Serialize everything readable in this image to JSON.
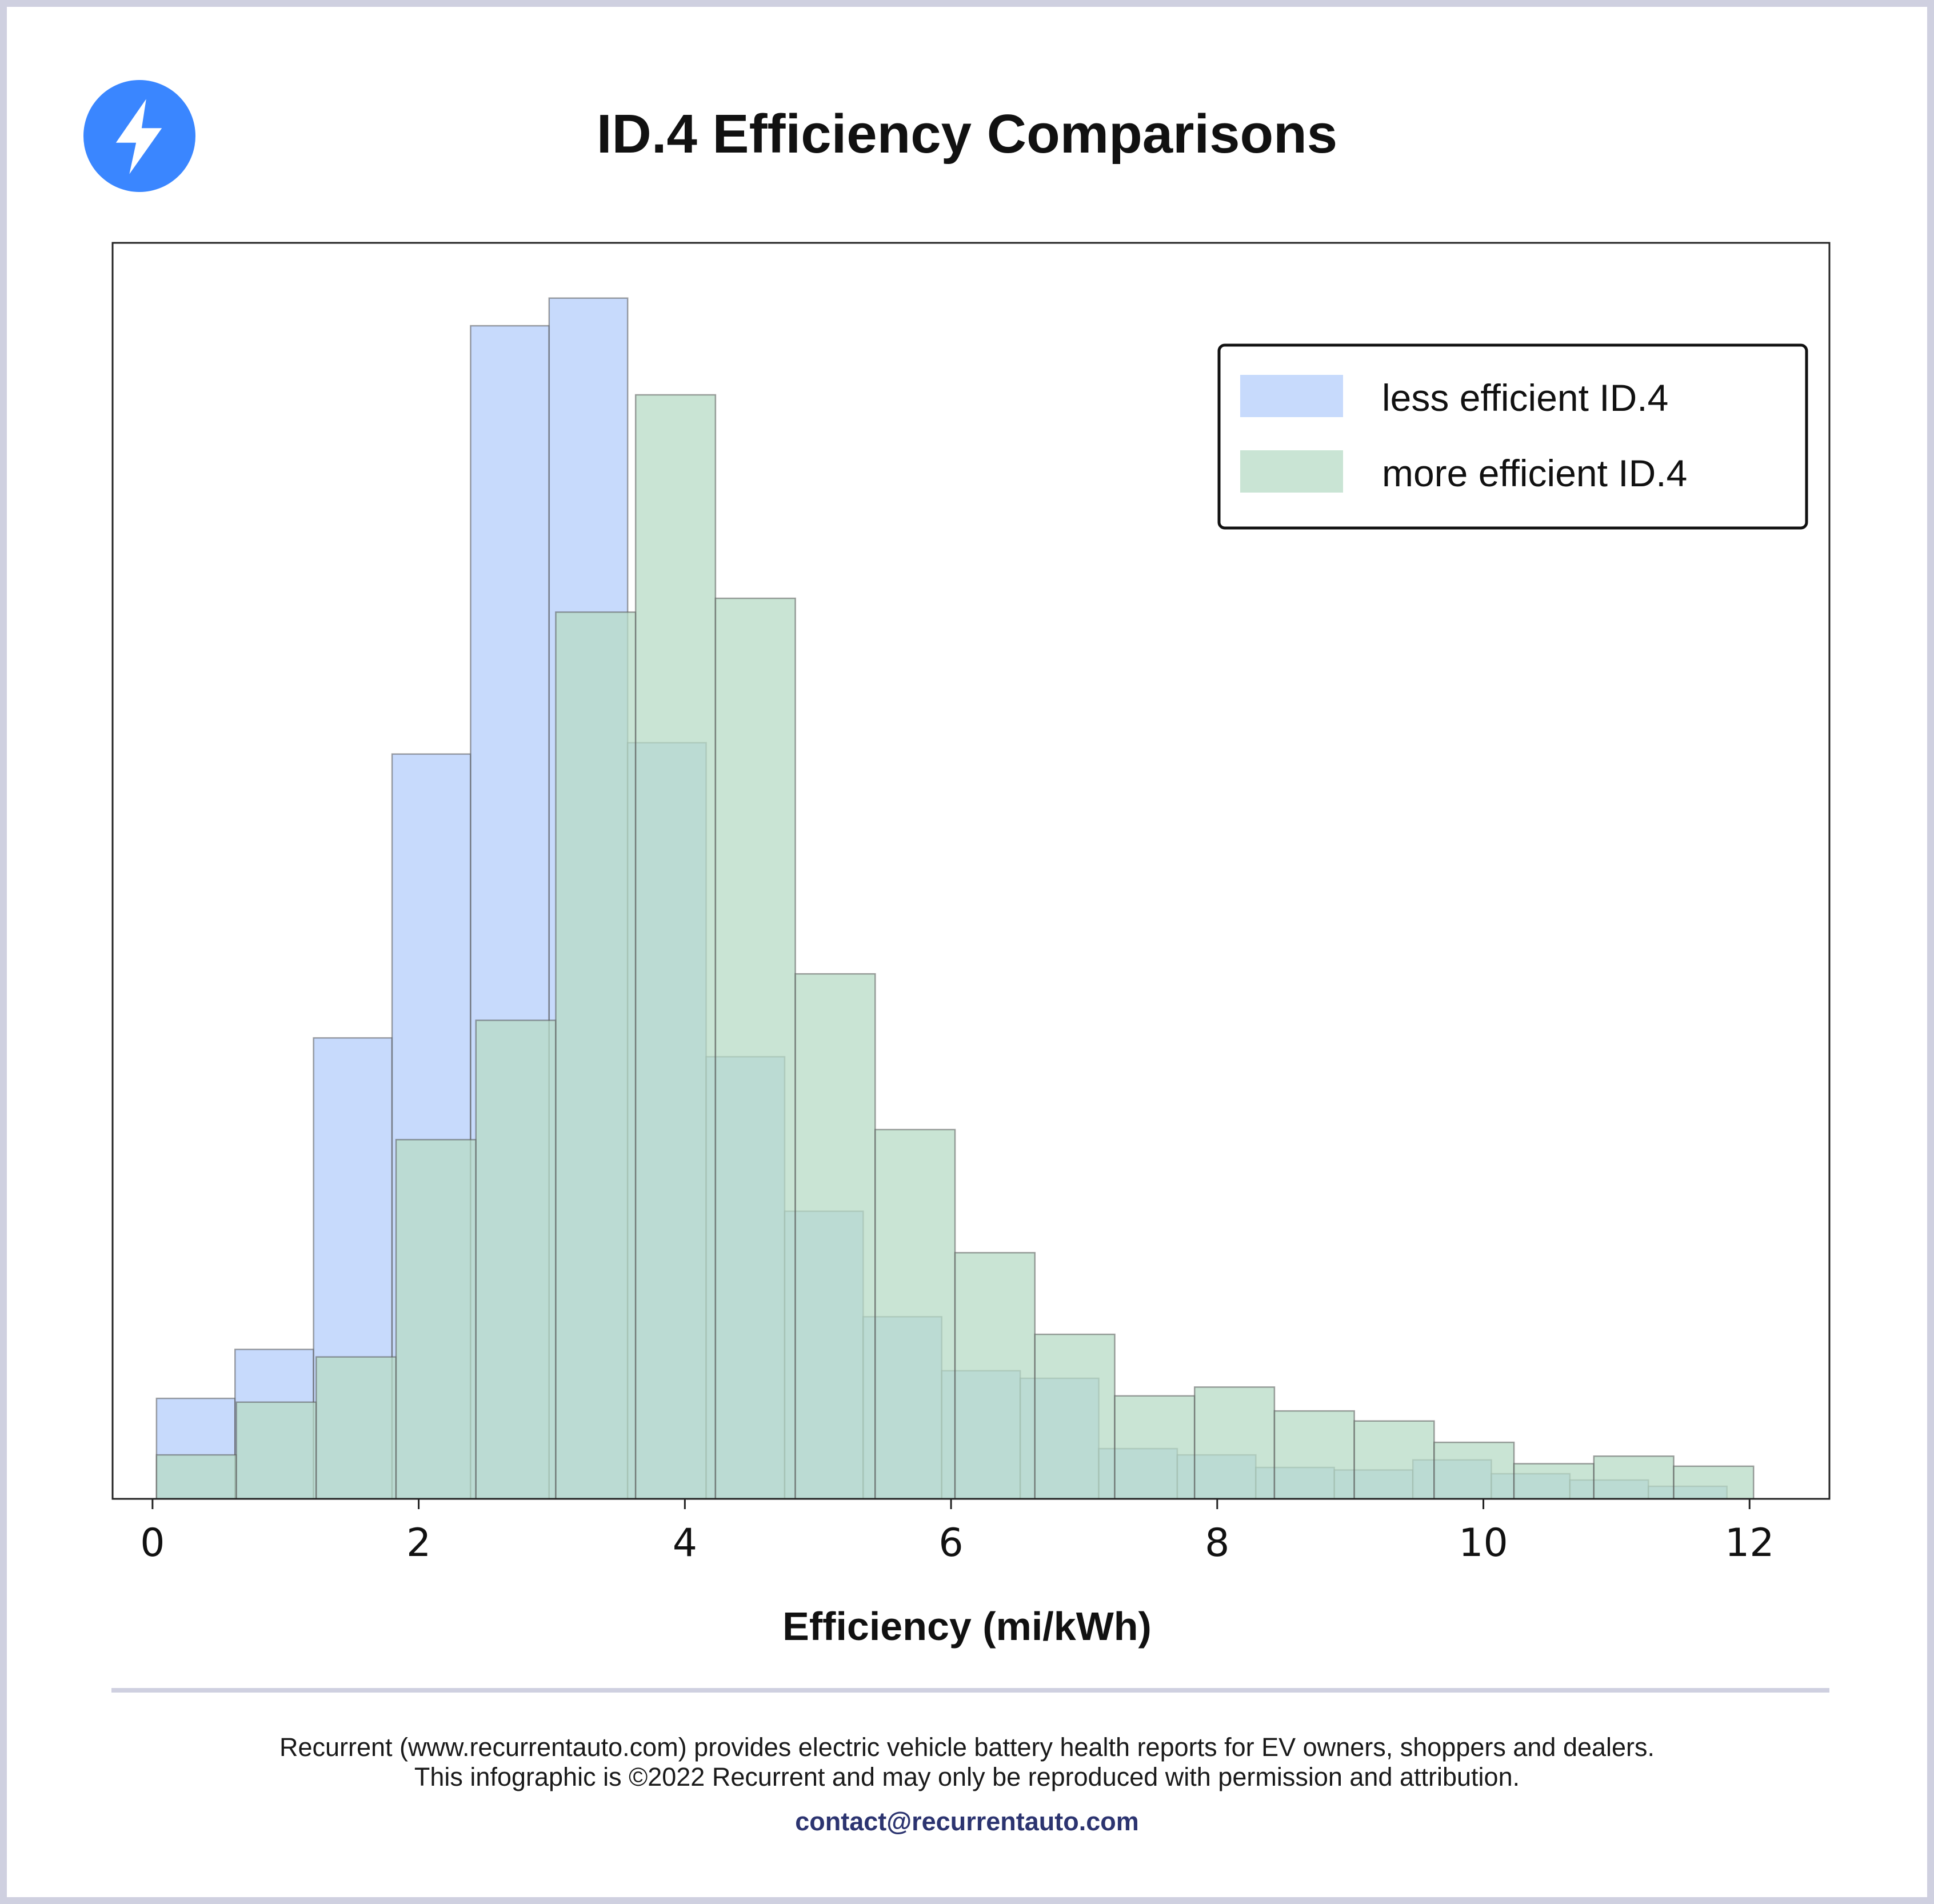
{
  "header": {
    "title": "ID.4 Efficiency Comparisons",
    "logo_icon": "lightning-bolt-icon",
    "logo_color": "#3a86ff"
  },
  "chart_data": {
    "type": "histogram",
    "xlabel": "Efficiency (mi/kWh)",
    "ylabel": "",
    "xlim": [
      -0.3,
      12.6
    ],
    "ylim": [
      0,
      1000
    ],
    "x_ticks": [
      0,
      2,
      4,
      6,
      8,
      10,
      12
    ],
    "y_ticks": [],
    "legend_position": "top-right",
    "series": [
      {
        "name": "less efficient ID.4",
        "color": "#b4cdfb",
        "bin_edges": [
          0.03,
          0.62,
          1.21,
          1.8,
          2.39,
          2.98,
          3.57,
          4.16,
          4.75,
          5.34,
          5.93,
          6.52,
          7.11,
          7.7,
          8.29,
          8.88,
          9.47,
          10.06,
          10.65,
          11.24,
          11.83
        ],
        "counts": [
          80,
          119,
          367,
          593,
          934,
          956,
          602,
          352,
          229,
          145,
          102,
          96,
          40,
          35,
          25,
          23,
          31,
          20,
          15,
          10
        ]
      },
      {
        "name": "more efficient ID.4",
        "color": "#b7dbc5",
        "bin_edges": [
          0.03,
          0.63,
          1.23,
          1.83,
          2.43,
          3.03,
          3.63,
          4.23,
          4.83,
          5.43,
          6.03,
          6.63,
          7.23,
          7.83,
          8.43,
          9.03,
          9.63,
          10.23,
          10.83,
          11.43,
          12.03
        ],
        "counts": [
          35,
          77,
          113,
          286,
          381,
          706,
          879,
          717,
          418,
          294,
          196,
          131,
          82,
          89,
          70,
          62,
          45,
          28,
          34,
          26
        ]
      }
    ]
  },
  "footer": {
    "line1": "Recurrent (www.recurrentauto.com) provides electric vehicle battery health reports for EV owners, shoppers and dealers.",
    "line2": "This infographic is ©2022 Recurrent and may only be reproduced with permission and attribution.",
    "contact": "contact@recurrentauto.com"
  }
}
